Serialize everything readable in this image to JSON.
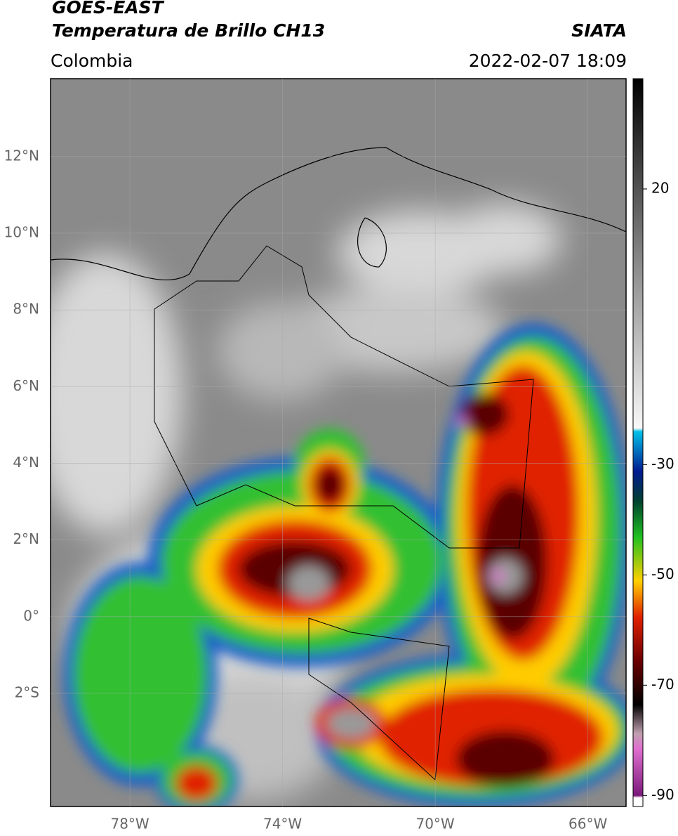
{
  "header": {
    "title_line1": "GOES-EAST",
    "title_line2": "Temperatura de Brillo CH13",
    "region": "Colombia",
    "source": "SIATA",
    "datetime": "2022-02-07 18:09"
  },
  "map": {
    "xlim": [
      -80.08,
      -65.0
    ],
    "ylim": [
      -4.95,
      14.03
    ],
    "xticks": [
      {
        "value": -78,
        "label": "78°W"
      },
      {
        "value": -74,
        "label": "74°W"
      },
      {
        "value": -70,
        "label": "70°W"
      },
      {
        "value": -66,
        "label": "66°W"
      }
    ],
    "yticks": [
      {
        "value": 12,
        "label": "12°N"
      },
      {
        "value": 10,
        "label": "10°N"
      },
      {
        "value": 8,
        "label": "8°N"
      },
      {
        "value": 6,
        "label": "6°N"
      },
      {
        "value": 4,
        "label": "4°N"
      },
      {
        "value": 2,
        "label": "2°N"
      },
      {
        "value": 0,
        "label": "0°"
      },
      {
        "value": -2,
        "label": "2°S"
      }
    ]
  },
  "colorbar": {
    "lim": [
      -92,
      40
    ],
    "ticks": [
      20,
      -30,
      -50,
      -70,
      -90
    ]
  }
}
